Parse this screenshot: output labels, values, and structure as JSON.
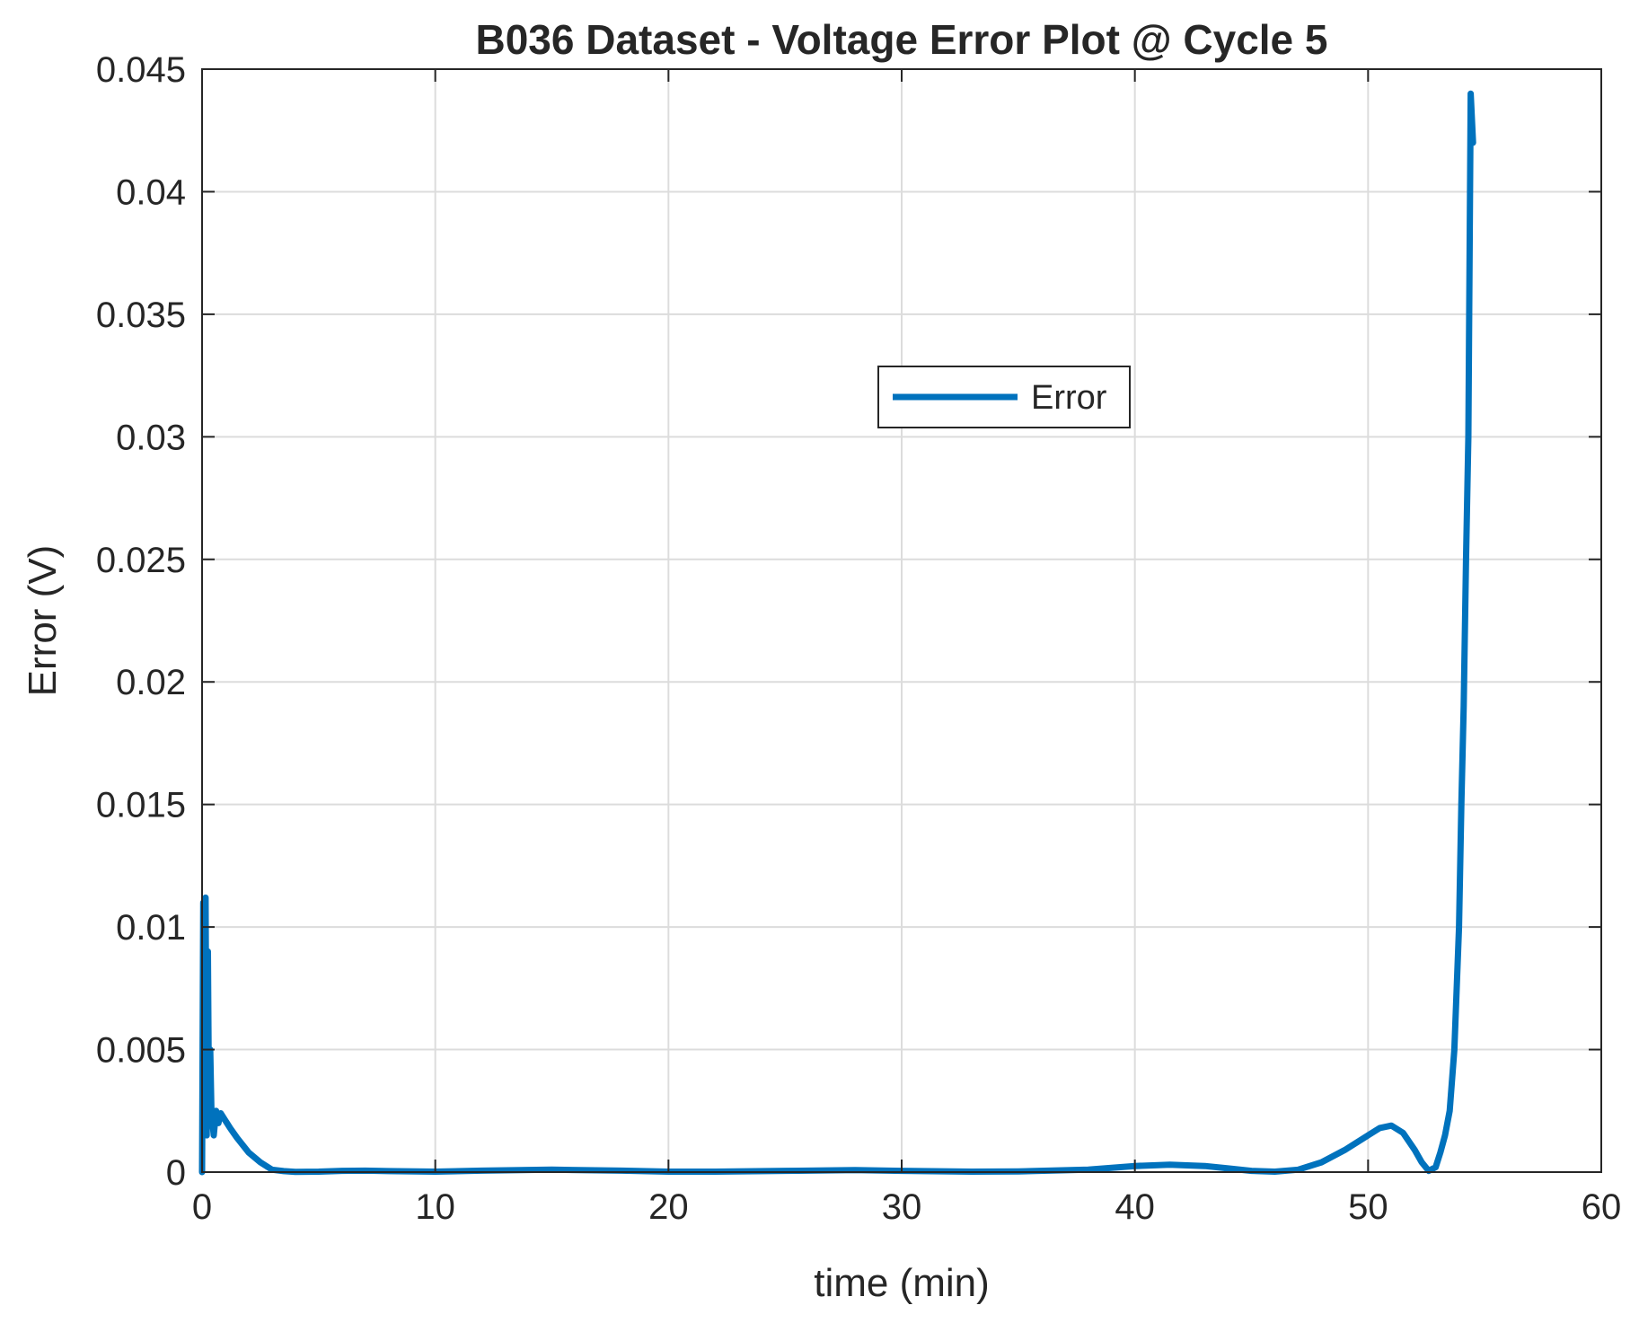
{
  "chart_data": {
    "type": "line",
    "title": "B036 Dataset - Voltage Error Plot @ Cycle 5",
    "xlabel": "time (min)",
    "ylabel": "Error (V)",
    "xlim": [
      0,
      60
    ],
    "ylim": [
      0,
      0.045
    ],
    "x_ticks": [
      0,
      10,
      20,
      30,
      40,
      50,
      60
    ],
    "x_tick_labels": [
      "0",
      "10",
      "20",
      "30",
      "40",
      "50",
      "60"
    ],
    "y_ticks": [
      0,
      0.005,
      0.01,
      0.015,
      0.02,
      0.025,
      0.03,
      0.035,
      0.04,
      0.045
    ],
    "y_tick_labels": [
      "0",
      "0.005",
      "0.01",
      "0.015",
      "0.02",
      "0.025",
      "0.03",
      "0.035",
      "0.04",
      "0.045"
    ],
    "grid": true,
    "legend": {
      "entries": [
        "Error"
      ],
      "placement": "upper-middle-right"
    },
    "series": [
      {
        "name": "Error",
        "color": "#0072BD",
        "x": [
          0,
          0.05,
          0.1,
          0.15,
          0.2,
          0.25,
          0.3,
          0.35,
          0.4,
          0.5,
          0.6,
          0.7,
          0.8,
          1.0,
          1.2,
          1.5,
          2.0,
          2.5,
          3.0,
          3.5,
          4.0,
          5.0,
          6.0,
          7.0,
          8.0,
          10.0,
          12.0,
          15.0,
          18.0,
          20.0,
          22.0,
          25.0,
          28.0,
          30.0,
          33.0,
          35.0,
          38.0,
          40.0,
          41.5,
          43.0,
          44.0,
          45.0,
          46.0,
          47.0,
          48.0,
          49.0,
          50.0,
          50.5,
          51.0,
          51.5,
          52.0,
          52.3,
          52.6,
          52.9,
          53.1,
          53.3,
          53.5,
          53.7,
          53.9,
          54.0,
          54.1,
          54.2,
          54.3,
          54.4,
          54.5
        ],
        "y": [
          0,
          0.011,
          0.002,
          0.0112,
          0.0015,
          0.009,
          0.002,
          0.005,
          0.0025,
          0.0015,
          0.0025,
          0.002,
          0.0024,
          0.0021,
          0.0018,
          0.0014,
          0.0008,
          0.0004,
          0.0001,
          4e-05,
          1e-05,
          2e-05,
          5e-05,
          6e-05,
          4e-05,
          2e-05,
          6e-05,
          0.0001,
          6e-05,
          2e-05,
          2e-05,
          5e-05,
          8e-05,
          5e-05,
          2e-05,
          3e-05,
          0.0001,
          0.00025,
          0.0003,
          0.00025,
          0.00015,
          5e-05,
          2e-05,
          0.0001,
          0.0004,
          0.0009,
          0.0015,
          0.0018,
          0.0019,
          0.0016,
          0.0009,
          0.0004,
          5e-05,
          0.0002,
          0.0008,
          0.0015,
          0.0025,
          0.005,
          0.01,
          0.015,
          0.019,
          0.025,
          0.03,
          0.044,
          0.042
        ]
      }
    ]
  }
}
